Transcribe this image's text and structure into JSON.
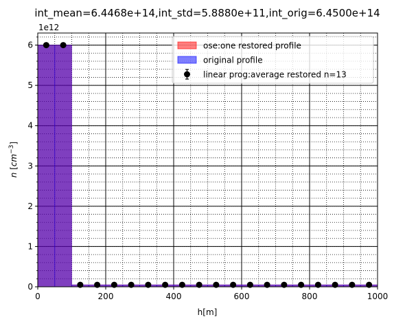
{
  "chart_data": {
    "type": "bar",
    "title": "int_mean=6.4468e+14,int_std=5.8880e+11,int_orig=6.4500e+14",
    "xlabel": "h[m]",
    "ylabel": "n [cm^-3]",
    "offset_text": "1e12",
    "xlim": [
      0,
      1000
    ],
    "ylim": [
      0,
      6.3
    ],
    "x_ticks": [
      0,
      200,
      400,
      600,
      800,
      1000
    ],
    "x_tick_labels": [
      "0",
      "200",
      "400",
      "600",
      "800",
      "1000"
    ],
    "y_ticks": [
      0,
      1,
      2,
      3,
      4,
      5,
      6
    ],
    "y_tick_labels": [
      "0",
      "1",
      "2",
      "3",
      "4",
      "5",
      "6"
    ],
    "x_minor_step": 50,
    "y_minor_step": 0.2,
    "grid": true,
    "legend_position": "top-right",
    "bin_width": 50,
    "series": [
      {
        "name": "ose:one restored profile",
        "kind": "bar",
        "color": "#ff0000",
        "alpha": 0.5,
        "values": [
          6.0,
          6.0,
          0.05,
          0.05,
          0.05,
          0.05,
          0.05,
          0.05,
          0.05,
          0.05,
          0.05,
          0.05,
          0.05,
          0.05,
          0.05,
          0.05,
          0.05,
          0.05,
          0.05,
          0.05
        ]
      },
      {
        "name": "original profile",
        "kind": "bar",
        "color": "#0000ff",
        "alpha": 0.5,
        "values": [
          6.0,
          6.0,
          0.05,
          0.05,
          0.05,
          0.05,
          0.05,
          0.05,
          0.05,
          0.05,
          0.05,
          0.05,
          0.05,
          0.05,
          0.05,
          0.05,
          0.05,
          0.05,
          0.05,
          0.05
        ]
      },
      {
        "name": "linear prog:average restored n=13",
        "kind": "errorbar",
        "color": "#000000",
        "x": [
          25,
          75,
          125,
          175,
          225,
          275,
          325,
          375,
          425,
          475,
          525,
          575,
          625,
          675,
          725,
          775,
          825,
          875,
          925,
          975
        ],
        "values": [
          6.0,
          6.0,
          0.05,
          0.05,
          0.05,
          0.05,
          0.05,
          0.05,
          0.05,
          0.05,
          0.05,
          0.05,
          0.05,
          0.05,
          0.05,
          0.05,
          0.05,
          0.05,
          0.05,
          0.05
        ],
        "errors": [
          0,
          0,
          0,
          0,
          0,
          0,
          0,
          0,
          0,
          0,
          0,
          0,
          0,
          0,
          0,
          0,
          0,
          0,
          0,
          0
        ]
      }
    ]
  }
}
